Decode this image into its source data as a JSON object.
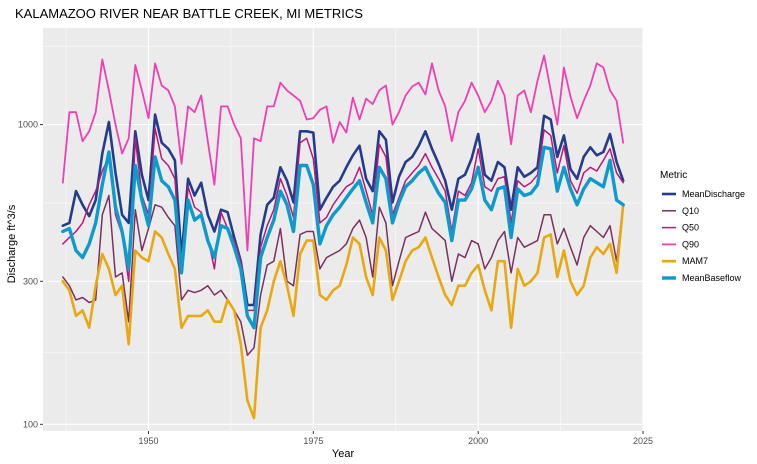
{
  "chart_data": {
    "type": "line",
    "title": "KALAMAZOO RIVER NEAR BATTLE CREEK, MI  METRICS",
    "xlabel": "Year",
    "ylabel": "Discharge ft^3/s",
    "y_scale": "log",
    "xlim": [
      1934,
      2025
    ],
    "ylim": [
      95,
      2100
    ],
    "x_ticks": [
      1950,
      1975,
      2000,
      2025
    ],
    "y_ticks": [
      100,
      300,
      1000
    ],
    "grid": true,
    "legend_position": "right",
    "legend_title": "Metric",
    "x": [
      1937,
      1938,
      1939,
      1940,
      1941,
      1942,
      1943,
      1944,
      1945,
      1946,
      1947,
      1948,
      1949,
      1950,
      1951,
      1952,
      1953,
      1954,
      1955,
      1956,
      1957,
      1958,
      1959,
      1960,
      1961,
      1962,
      1963,
      1964,
      1965,
      1966,
      1967,
      1968,
      1969,
      1970,
      1971,
      1972,
      1973,
      1974,
      1975,
      1976,
      1977,
      1978,
      1979,
      1980,
      1981,
      1982,
      1983,
      1984,
      1985,
      1986,
      1987,
      1988,
      1989,
      1990,
      1991,
      1992,
      1993,
      1994,
      1995,
      1996,
      1997,
      1998,
      1999,
      2000,
      2001,
      2002,
      2003,
      2004,
      2005,
      2006,
      2007,
      2008,
      2009,
      2010,
      2011,
      2012,
      2013,
      2014,
      2015,
      2016,
      2017,
      2018,
      2019,
      2020,
      2021,
      2022
    ],
    "series": [
      {
        "name": "MeanDischarge",
        "color": "#253c8a",
        "width": 2.6,
        "values": [
          460,
          470,
          600,
          540,
          495,
          560,
          800,
          1020,
          690,
          500,
          470,
          950,
          680,
          560,
          1080,
          870,
          830,
          760,
          360,
          660,
          580,
          640,
          500,
          440,
          520,
          510,
          420,
          350,
          250,
          250,
          430,
          540,
          570,
          720,
          650,
          550,
          950,
          950,
          940,
          520,
          570,
          620,
          650,
          720,
          790,
          850,
          660,
          600,
          950,
          890,
          550,
          670,
          750,
          780,
          850,
          950,
          830,
          740,
          650,
          520,
          660,
          680,
          770,
          930,
          680,
          650,
          750,
          720,
          520,
          720,
          670,
          690,
          720,
          1070,
          1040,
          780,
          920,
          710,
          660,
          780,
          840,
          790,
          810,
          930,
          750,
          650
        ]
      },
      {
        "name": "Q10",
        "color": "#7a3060",
        "width": 1.5,
        "values": [
          310,
          290,
          260,
          265,
          255,
          260,
          500,
          580,
          310,
          320,
          220,
          520,
          380,
          450,
          540,
          530,
          490,
          460,
          260,
          280,
          275,
          280,
          290,
          270,
          280,
          260,
          240,
          220,
          170,
          180,
          270,
          340,
          350,
          450,
          300,
          290,
          430,
          440,
          440,
          330,
          360,
          370,
          380,
          400,
          450,
          480,
          420,
          310,
          530,
          470,
          290,
          350,
          420,
          430,
          440,
          510,
          450,
          430,
          410,
          300,
          370,
          360,
          410,
          400,
          330,
          360,
          410,
          440,
          320,
          420,
          390,
          400,
          410,
          500,
          500,
          400,
          450,
          390,
          340,
          420,
          460,
          440,
          420,
          460,
          350,
          540
        ]
      },
      {
        "name": "Q50",
        "color": "#b5197a",
        "width": 1.5,
        "values": [
          400,
          420,
          440,
          470,
          540,
          600,
          700,
          780,
          500,
          430,
          300,
          900,
          580,
          500,
          970,
          770,
          730,
          660,
          320,
          620,
          530,
          510,
          420,
          330,
          510,
          450,
          410,
          350,
          240,
          240,
          390,
          460,
          520,
          660,
          580,
          490,
          870,
          900,
          770,
          470,
          490,
          540,
          580,
          620,
          640,
          720,
          600,
          500,
          860,
          780,
          500,
          570,
          650,
          690,
          730,
          800,
          720,
          660,
          600,
          440,
          600,
          580,
          640,
          830,
          620,
          600,
          660,
          670,
          470,
          650,
          620,
          640,
          680,
          960,
          920,
          690,
          850,
          650,
          590,
          690,
          720,
          700,
          760,
          830,
          690,
          640
        ]
      },
      {
        "name": "Q90",
        "color": "#f03eb4",
        "width": 1.8,
        "values": [
          640,
          1100,
          1100,
          880,
          950,
          1100,
          1650,
          1300,
          1000,
          800,
          900,
          1580,
          1300,
          1050,
          1600,
          1350,
          1300,
          1150,
          740,
          1150,
          1100,
          1250,
          880,
          630,
          1150,
          1150,
          1000,
          900,
          380,
          900,
          880,
          1150,
          1150,
          1380,
          1300,
          1250,
          1200,
          1040,
          1050,
          1120,
          1150,
          870,
          1020,
          940,
          1230,
          1040,
          1220,
          1170,
          1300,
          1350,
          1000,
          1100,
          1250,
          1340,
          1380,
          1260,
          1600,
          1300,
          1150,
          880,
          1100,
          1200,
          1380,
          1250,
          1100,
          1200,
          1400,
          1250,
          860,
          1250,
          1300,
          1100,
          1400,
          1700,
          1300,
          1000,
          1550,
          1240,
          1050,
          1200,
          1350,
          1600,
          1550,
          1300,
          1200,
          870
        ]
      },
      {
        "name": "MAM7",
        "color": "#e8a812",
        "width": 2.6,
        "values": [
          300,
          280,
          230,
          240,
          210,
          290,
          370,
          330,
          270,
          290,
          185,
          380,
          360,
          350,
          440,
          420,
          370,
          330,
          210,
          230,
          230,
          230,
          240,
          220,
          220,
          260,
          240,
          185,
          120,
          105,
          210,
          240,
          300,
          350,
          290,
          230,
          370,
          410,
          410,
          270,
          260,
          280,
          290,
          340,
          420,
          400,
          310,
          270,
          420,
          380,
          260,
          300,
          350,
          380,
          390,
          420,
          360,
          310,
          270,
          250,
          290,
          290,
          320,
          340,
          280,
          240,
          350,
          350,
          210,
          330,
          290,
          300,
          320,
          420,
          430,
          310,
          380,
          300,
          270,
          290,
          360,
          390,
          370,
          400,
          320,
          540
        ]
      },
      {
        "name": "MeanBaseflow",
        "color": "#0f9acc",
        "width": 3.4,
        "values": [
          440,
          450,
          380,
          360,
          400,
          470,
          630,
          810,
          530,
          440,
          330,
          730,
          560,
          460,
          780,
          650,
          620,
          560,
          320,
          560,
          480,
          500,
          410,
          360,
          460,
          450,
          390,
          330,
          230,
          210,
          360,
          420,
          480,
          600,
          540,
          440,
          730,
          730,
          630,
          400,
          460,
          500,
          530,
          570,
          610,
          650,
          550,
          470,
          720,
          660,
          470,
          550,
          620,
          650,
          690,
          720,
          650,
          590,
          550,
          410,
          560,
          560,
          610,
          720,
          560,
          520,
          610,
          620,
          420,
          610,
          580,
          590,
          630,
          840,
          830,
          600,
          720,
          610,
          540,
          610,
          660,
          640,
          620,
          760,
          560,
          540
        ]
      }
    ]
  }
}
